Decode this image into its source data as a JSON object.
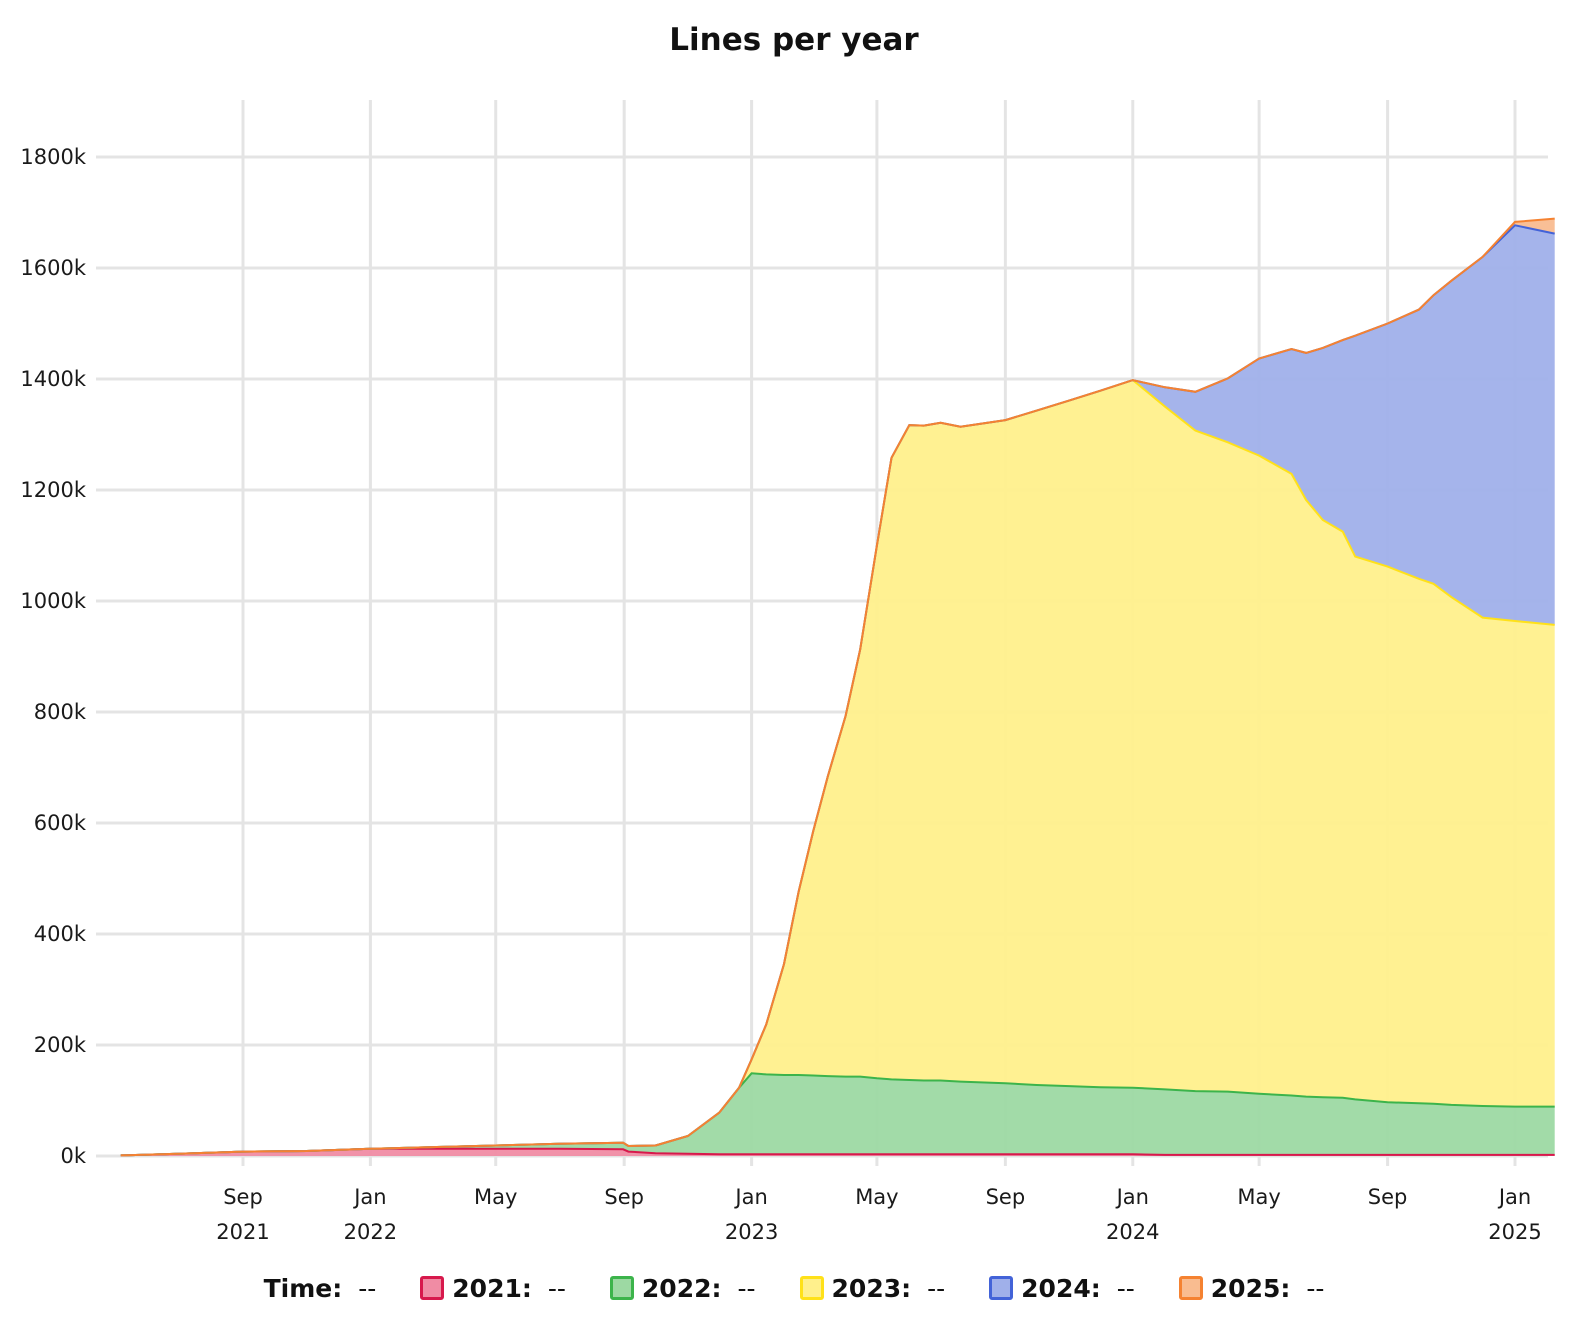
{
  "chart_data": {
    "type": "area",
    "stacked": true,
    "title": "Lines per year",
    "xlabel": "",
    "ylabel": "",
    "ylim": [
      0,
      1900000
    ],
    "yticks": [
      0,
      200000,
      400000,
      600000,
      800000,
      1000000,
      1200000,
      1400000,
      1600000,
      1800000
    ],
    "ytick_labels": [
      "0k",
      "200k",
      "400k",
      "600k",
      "800k",
      "1000k",
      "1200k",
      "1400k",
      "1600k",
      "1800k"
    ],
    "xlim": [
      "2021-05-01",
      "2025-02-08"
    ],
    "xticks": [
      {
        "date": "2021-09-01",
        "label": "Sep",
        "year": "2021"
      },
      {
        "date": "2022-01-01",
        "label": "Jan",
        "year": "2022"
      },
      {
        "date": "2022-05-01",
        "label": "May",
        "year": ""
      },
      {
        "date": "2022-09-01",
        "label": "Sep",
        "year": ""
      },
      {
        "date": "2023-01-01",
        "label": "Jan",
        "year": "2023"
      },
      {
        "date": "2023-05-01",
        "label": "May",
        "year": ""
      },
      {
        "date": "2023-09-01",
        "label": "Sep",
        "year": ""
      },
      {
        "date": "2024-01-01",
        "label": "Jan",
        "year": "2024"
      },
      {
        "date": "2024-05-01",
        "label": "May",
        "year": ""
      },
      {
        "date": "2024-09-01",
        "label": "Sep",
        "year": ""
      },
      {
        "date": "2025-01-01",
        "label": "Jan",
        "year": "2025"
      }
    ],
    "grid": true,
    "legend_position": "bottom",
    "x": [
      "2021-05-07",
      "2021-07-01",
      "2021-09-01",
      "2021-11-01",
      "2022-01-01",
      "2022-03-01",
      "2022-05-01",
      "2022-07-01",
      "2022-08-31",
      "2022-09-05",
      "2022-10-01",
      "2022-11-01",
      "2022-12-01",
      "2022-12-20",
      "2023-01-01",
      "2023-01-15",
      "2023-02-01",
      "2023-02-15",
      "2023-03-01",
      "2023-03-15",
      "2023-04-01",
      "2023-04-15",
      "2023-05-01",
      "2023-05-15",
      "2023-06-01",
      "2023-06-15",
      "2023-07-01",
      "2023-07-20",
      "2023-09-01",
      "2023-10-01",
      "2023-11-01",
      "2023-12-01",
      "2024-01-01",
      "2024-02-01",
      "2024-03-01",
      "2024-04-01",
      "2024-05-01",
      "2024-06-01",
      "2024-06-15",
      "2024-07-01",
      "2024-07-20",
      "2024-08-01",
      "2024-09-01",
      "2024-10-01",
      "2024-10-15",
      "2024-11-01",
      "2024-12-01",
      "2025-01-01",
      "2025-02-08"
    ],
    "series": [
      {
        "name": "2021",
        "color": "#f08ca4",
        "stroke": "#d7194c",
        "values": [
          1000,
          4000,
          8000,
          9000,
          13000,
          13000,
          13000,
          13000,
          12000,
          8000,
          5000,
          4000,
          3000,
          3000,
          3000,
          3000,
          3000,
          3000,
          3000,
          3000,
          3000,
          3000,
          3000,
          3000,
          3000,
          3000,
          3000,
          3000,
          3000,
          3000,
          3000,
          3000,
          3000,
          2000,
          2000,
          2000,
          2000,
          2000,
          2000,
          2000,
          2000,
          2000,
          2000,
          2000,
          2000,
          2000,
          2000,
          2000,
          2000
        ]
      },
      {
        "name": "2022",
        "color": "#9dd9a3",
        "stroke": "#3cb44b",
        "values": [
          0,
          0,
          0,
          0,
          0,
          3000,
          6000,
          9000,
          12000,
          10000,
          14000,
          32000,
          75000,
          120000,
          146000,
          144000,
          143000,
          143000,
          142000,
          141000,
          140000,
          140000,
          137000,
          135000,
          134000,
          133000,
          133000,
          131000,
          128000,
          125000,
          123000,
          121000,
          120000,
          118000,
          115000,
          114000,
          110000,
          107000,
          105000,
          104000,
          103000,
          100000,
          95000,
          93000,
          92000,
          90000,
          88000,
          87000,
          87000
        ]
      },
      {
        "name": "2023",
        "color": "#fff08c",
        "stroke": "#ffe119",
        "values": [
          0,
          0,
          0,
          0,
          0,
          0,
          0,
          0,
          0,
          0,
          0,
          0,
          0,
          0,
          25000,
          90000,
          200000,
          330000,
          440000,
          540000,
          650000,
          770000,
          960000,
          1120000,
          1180000,
          1180000,
          1185000,
          1180000,
          1195000,
          1215000,
          1235000,
          1255000,
          1275000,
          1230000,
          1190000,
          1170000,
          1150000,
          1120000,
          1075000,
          1040000,
          1020000,
          978000,
          965000,
          945000,
          937000,
          915000,
          880000,
          875000,
          868000
        ]
      },
      {
        "name": "2024",
        "color": "#a0b0ea",
        "stroke": "#4363d8",
        "values": [
          0,
          0,
          0,
          0,
          0,
          0,
          0,
          0,
          0,
          0,
          0,
          0,
          0,
          0,
          0,
          0,
          0,
          0,
          0,
          0,
          0,
          0,
          0,
          0,
          0,
          0,
          0,
          0,
          0,
          0,
          0,
          0,
          0,
          35000,
          70000,
          115000,
          175000,
          225000,
          265000,
          310000,
          345000,
          398000,
          438000,
          485000,
          520000,
          570000,
          650000,
          713000,
          705000
        ]
      },
      {
        "name": "2025",
        "color": "#f9bc90",
        "stroke": "#f58231",
        "values": [
          0,
          0,
          0,
          0,
          0,
          0,
          0,
          0,
          0,
          0,
          0,
          0,
          0,
          0,
          0,
          0,
          0,
          0,
          0,
          0,
          0,
          0,
          0,
          0,
          0,
          0,
          0,
          0,
          0,
          0,
          0,
          0,
          0,
          0,
          0,
          0,
          0,
          0,
          0,
          0,
          0,
          0,
          0,
          0,
          0,
          0,
          0,
          6000,
          27000
        ]
      }
    ]
  },
  "legend": {
    "time_label": "Time:",
    "time_value": "--",
    "items": [
      {
        "label": "2021:",
        "value": "--",
        "color": "#f08ca4",
        "stroke": "#d7194c"
      },
      {
        "label": "2022:",
        "value": "--",
        "color": "#9dd9a3",
        "stroke": "#3cb44b"
      },
      {
        "label": "2023:",
        "value": "--",
        "color": "#fff08c",
        "stroke": "#ffe119"
      },
      {
        "label": "2024:",
        "value": "--",
        "color": "#a0b0ea",
        "stroke": "#4363d8"
      },
      {
        "label": "2025:",
        "value": "--",
        "color": "#f9bc90",
        "stroke": "#f58231"
      }
    ]
  }
}
